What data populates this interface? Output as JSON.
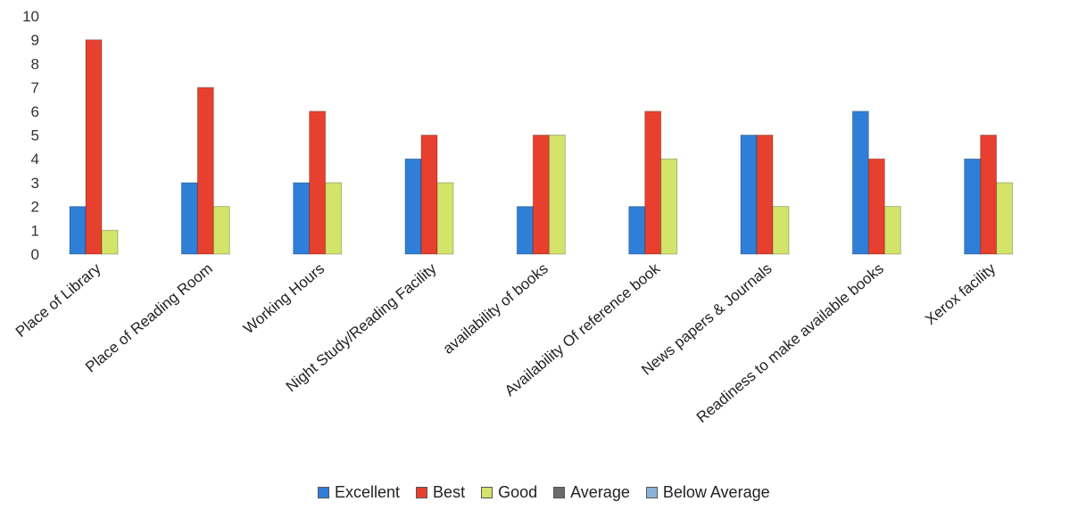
{
  "chart_data": {
    "type": "bar",
    "categories": [
      "Place of Library",
      "Place of Reading Room",
      "Working Hours",
      "Night Study/Reading Facility",
      "availability  of books",
      "Availability Of reference book",
      "News papers & Journals",
      "Readiness to make available books",
      "Xerox facility"
    ],
    "series": [
      {
        "name": "Excellent",
        "color": "#2f7fd8",
        "values": [
          2,
          3,
          3,
          4,
          2,
          2,
          5,
          6,
          4
        ]
      },
      {
        "name": "Best",
        "color": "#e8402e",
        "values": [
          9,
          7,
          6,
          5,
          5,
          6,
          5,
          4,
          5
        ]
      },
      {
        "name": "Good",
        "color": "#d4e36a",
        "values": [
          1,
          2,
          3,
          3,
          5,
          4,
          2,
          2,
          3
        ]
      },
      {
        "name": "Average",
        "color": "#6b6b6b",
        "values": [
          0,
          0,
          0,
          0,
          0,
          0,
          0,
          0,
          0
        ]
      },
      {
        "name": "Below Average",
        "color": "#8ab4d6",
        "values": [
          0,
          0,
          0,
          0,
          0,
          0,
          0,
          0,
          0
        ]
      }
    ],
    "y_ticks": [
      "0",
      "1",
      "2",
      "3",
      "4",
      "5",
      "6",
      "7",
      "8",
      "9",
      "10"
    ],
    "ylim": [
      0,
      10
    ],
    "grid": false,
    "legend_position": "bottom",
    "title": "",
    "xlabel": "",
    "ylabel": ""
  }
}
